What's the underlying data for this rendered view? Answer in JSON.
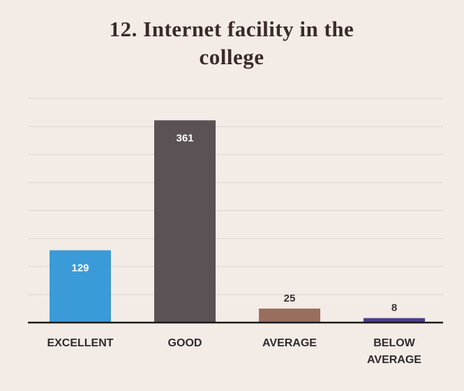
{
  "chart_data": {
    "type": "bar",
    "title": "12. Internet facility in the college",
    "categories": [
      "EXCELLENT",
      "GOOD",
      "AVERAGE",
      "BELOW AVERAGE"
    ],
    "values": [
      129,
      361,
      25,
      8
    ],
    "colors": [
      "#3b9ad8",
      "#5a5254",
      "#9a6e5f",
      "#4a3f88"
    ],
    "ylim": [
      0,
      400
    ],
    "yticks": [
      0,
      50,
      100,
      150,
      200,
      250,
      300,
      350,
      400
    ],
    "grid": true
  }
}
